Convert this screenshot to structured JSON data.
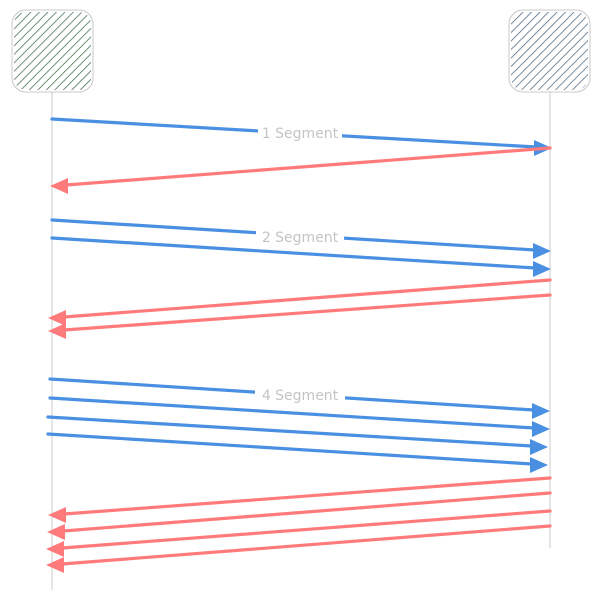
{
  "diagram": {
    "participants": [
      {
        "id": "left",
        "label": "",
        "color": "#2f5e3a"
      },
      {
        "id": "right",
        "label": "",
        "color": "#3d5a75"
      }
    ],
    "colors": {
      "send": "#4a90e2",
      "ack": "#ff7b7b",
      "lifeline": "#d4d4d4",
      "label": "#c4c4c4"
    },
    "rounds": [
      {
        "label": "1 Segment",
        "segments": 1,
        "acks": 1
      },
      {
        "label": "2 Segment",
        "segments": 2,
        "acks": 2
      },
      {
        "label": "4 Segment",
        "segments": 4,
        "acks": 4
      }
    ]
  }
}
